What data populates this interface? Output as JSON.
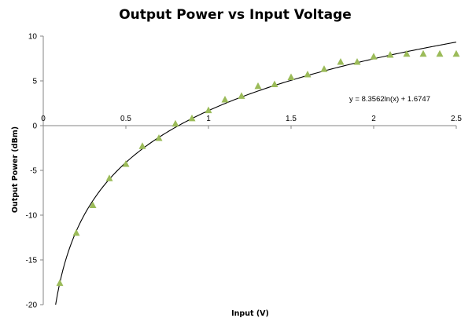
{
  "chart_data": {
    "type": "scatter",
    "title": "Output Power vs Input Voltage",
    "xlabel": "Input (V)",
    "ylabel": "Output Power (dBm)",
    "xlim": [
      0,
      2.5
    ],
    "ylim": [
      -20,
      10
    ],
    "x_ticks": [
      "0",
      "0.5",
      "1",
      "1.5",
      "2",
      "2.5"
    ],
    "y_ticks": [
      "10",
      "5",
      "0",
      "-5",
      "-10",
      "-15",
      "-20"
    ],
    "grid": false,
    "legend": "none",
    "marker": "triangle",
    "marker_color": "#9bbb59",
    "trendline_color": "#000000",
    "trendline_equation": "y = 8.3562ln(x) + 1.6747",
    "trendline": {
      "type": "logarithmic",
      "a": 8.3562,
      "b": 1.6747
    },
    "series": [
      {
        "x": [
          0.1,
          0.2,
          0.3,
          0.4,
          0.5,
          0.6,
          0.7,
          0.8,
          0.9,
          1.0,
          1.1,
          1.2,
          1.3,
          1.4,
          1.5,
          1.6,
          1.7,
          1.8,
          1.9,
          2.0,
          2.1,
          2.2,
          2.3,
          2.4,
          2.5
        ],
        "y": [
          -17.6,
          -12.0,
          -8.9,
          -5.9,
          -4.3,
          -2.3,
          -1.4,
          0.2,
          0.8,
          1.7,
          2.9,
          3.3,
          4.4,
          4.6,
          5.4,
          5.7,
          6.3,
          7.1,
          7.1,
          7.7,
          7.9,
          8.0,
          8.0,
          8.0,
          8.0
        ]
      }
    ]
  }
}
